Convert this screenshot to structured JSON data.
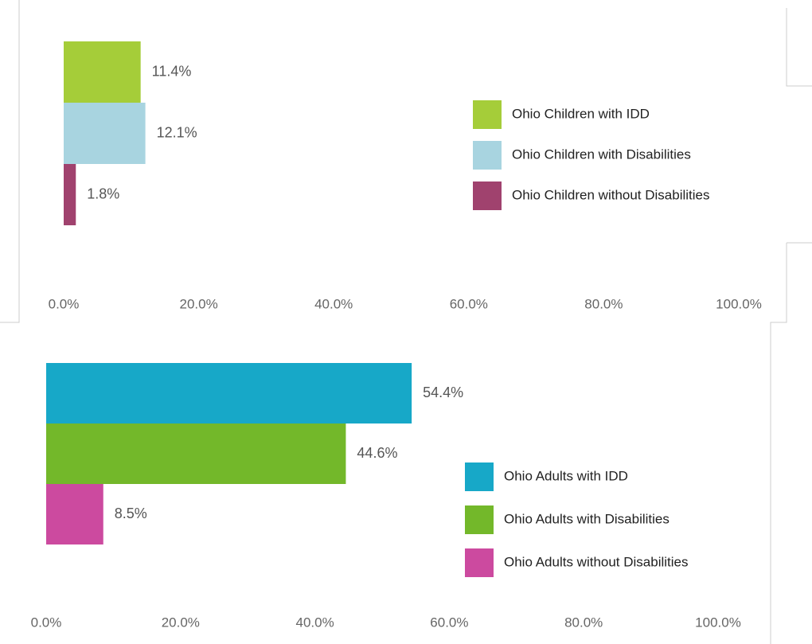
{
  "chart_data": [
    {
      "type": "bar",
      "orientation": "horizontal",
      "series": [
        {
          "name": "Ohio Children with IDD",
          "color": "#a5cd39",
          "values": [
            11.4
          ],
          "value_labels": [
            "11.4%"
          ]
        },
        {
          "name": "Ohio Children with Disabilities",
          "color": "#a8d4e0",
          "values": [
            12.1
          ],
          "value_labels": [
            "12.1%"
          ]
        },
        {
          "name": "Ohio Children without Disabilities",
          "color": "#a0426e",
          "values": [
            1.8
          ],
          "value_labels": [
            "1.8%"
          ]
        }
      ],
      "xlim": [
        0,
        100
      ],
      "xticks": [
        {
          "value": 0,
          "label": "0.0%"
        },
        {
          "value": 20,
          "label": "20.0%"
        },
        {
          "value": 40,
          "label": "40.0%"
        },
        {
          "value": 60,
          "label": "60.0%"
        },
        {
          "value": 80,
          "label": "80.0%"
        },
        {
          "value": 100,
          "label": "100.0%"
        }
      ],
      "legend": "right"
    },
    {
      "type": "bar",
      "orientation": "horizontal",
      "series": [
        {
          "name": "Ohio Adults with IDD",
          "color": "#17a8c8",
          "values": [
            54.4
          ],
          "value_labels": [
            "54.4%"
          ]
        },
        {
          "name": "Ohio Adults with Disabilities",
          "color": "#73b82a",
          "values": [
            44.6
          ],
          "value_labels": [
            "44.6%"
          ]
        },
        {
          "name": "Ohio Adults without Disabilities",
          "color": "#cc4a9f",
          "values": [
            8.5
          ],
          "value_labels": [
            "8.5%"
          ]
        }
      ],
      "xlim": [
        0,
        100
      ],
      "xticks": [
        {
          "value": 0,
          "label": "0.0%"
        },
        {
          "value": 20,
          "label": "20.0%"
        },
        {
          "value": 40,
          "label": "40.0%"
        },
        {
          "value": 60,
          "label": "60.0%"
        },
        {
          "value": 80,
          "label": "80.0%"
        },
        {
          "value": 100,
          "label": "100.0%"
        }
      ],
      "legend": "right"
    }
  ]
}
